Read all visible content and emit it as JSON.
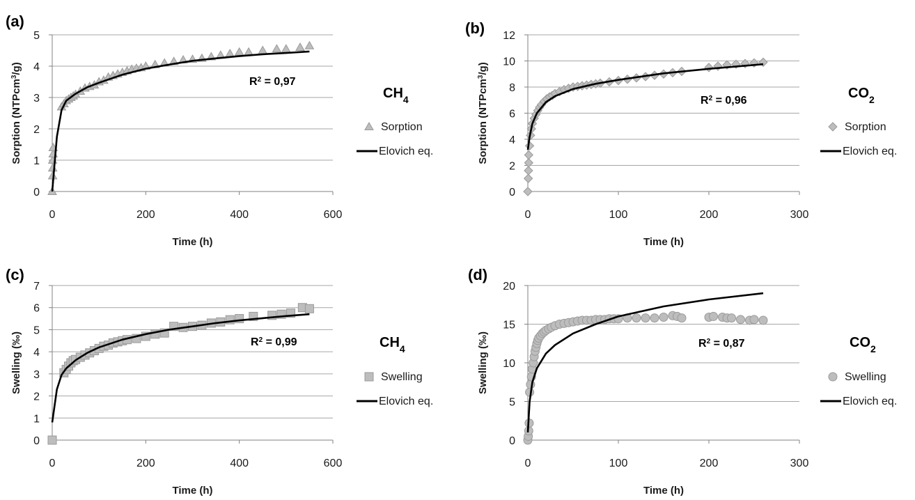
{
  "colors": {
    "marker_fill": "#bdbdbd",
    "marker_stroke": "#9a9a9a",
    "fit_line": "#000000",
    "gridline": "#a6a6a6",
    "axis": "#808080"
  },
  "chart_data": [
    {
      "panel_label": "(a)",
      "gas": "CH",
      "gas_sub": "4",
      "type": "scatter",
      "marker": "triangle",
      "ylabel_main": "Sorption (NTPcm",
      "ylabel_sup": "3",
      "ylabel_end": "/g)",
      "xlabel": "Time (h)",
      "xlim": [
        0,
        600
      ],
      "xticks": [
        0,
        200,
        400,
        600
      ],
      "ylim": [
        0,
        5
      ],
      "yticks": [
        0,
        1,
        2,
        3,
        4,
        5
      ],
      "grid": "horizontal",
      "legend_placement": "right",
      "r2_prefix": "R",
      "r2_sup": "2",
      "r2_value": " = 0,97",
      "series": [
        {
          "name": "Sorption",
          "kind": "markers",
          "points": [
            [
              0,
              0
            ],
            [
              1,
              0.5
            ],
            [
              1,
              0.75
            ],
            [
              1,
              1.0
            ],
            [
              2,
              1.2
            ],
            [
              2,
              1.4
            ],
            [
              20,
              2.7
            ],
            [
              25,
              2.8
            ],
            [
              30,
              2.9
            ],
            [
              35,
              2.95
            ],
            [
              40,
              3.0
            ],
            [
              45,
              3.05
            ],
            [
              50,
              3.1
            ],
            [
              60,
              3.2
            ],
            [
              70,
              3.3
            ],
            [
              80,
              3.35
            ],
            [
              90,
              3.4
            ],
            [
              100,
              3.5
            ],
            [
              110,
              3.55
            ],
            [
              120,
              3.65
            ],
            [
              130,
              3.7
            ],
            [
              140,
              3.75
            ],
            [
              150,
              3.8
            ],
            [
              160,
              3.85
            ],
            [
              170,
              3.9
            ],
            [
              180,
              3.93
            ],
            [
              190,
              3.95
            ],
            [
              200,
              4.0
            ],
            [
              220,
              4.05
            ],
            [
              240,
              4.1
            ],
            [
              260,
              4.15
            ],
            [
              280,
              4.2
            ],
            [
              300,
              4.22
            ],
            [
              320,
              4.25
            ],
            [
              340,
              4.3
            ],
            [
              360,
              4.35
            ],
            [
              380,
              4.4
            ],
            [
              400,
              4.45
            ],
            [
              420,
              4.45
            ],
            [
              450,
              4.5
            ],
            [
              480,
              4.55
            ],
            [
              500,
              4.55
            ],
            [
              530,
              4.6
            ],
            [
              550,
              4.65
            ]
          ]
        },
        {
          "name": "Elovich eq.",
          "kind": "line",
          "points": [
            [
              0,
              0
            ],
            [
              10,
              1.75
            ],
            [
              20,
              2.6
            ],
            [
              30,
              2.9
            ],
            [
              50,
              3.12
            ],
            [
              75,
              3.33
            ],
            [
              100,
              3.47
            ],
            [
              150,
              3.73
            ],
            [
              200,
              3.92
            ],
            [
              250,
              4.05
            ],
            [
              300,
              4.17
            ],
            [
              350,
              4.25
            ],
            [
              400,
              4.32
            ],
            [
              450,
              4.38
            ],
            [
              500,
              4.42
            ],
            [
              550,
              4.47
            ]
          ]
        }
      ]
    },
    {
      "panel_label": "(b)",
      "gas": "CO",
      "gas_sub": "2",
      "type": "scatter",
      "marker": "diamond",
      "ylabel_main": "Sorption (NTPcm",
      "ylabel_sup": "3",
      "ylabel_end": "/g)",
      "xlabel": "Time (h)",
      "xlim": [
        0,
        300
      ],
      "xticks": [
        0,
        100,
        200,
        300
      ],
      "ylim": [
        0,
        12
      ],
      "yticks": [
        0,
        2,
        4,
        6,
        8,
        10,
        12
      ],
      "grid": "horizontal",
      "legend_placement": "right",
      "r2_prefix": "R",
      "r2_sup": "2",
      "r2_value": " = 0,96",
      "series": [
        {
          "name": "Sorption",
          "kind": "markers",
          "points": [
            [
              0,
              0
            ],
            [
              0.5,
              1.0
            ],
            [
              0.7,
              1.6
            ],
            [
              1,
              2.2
            ],
            [
              1,
              2.8
            ],
            [
              2,
              3.5
            ],
            [
              3,
              4.3
            ],
            [
              4,
              4.8
            ],
            [
              5,
              5.2
            ],
            [
              7,
              5.6
            ],
            [
              9,
              5.9
            ],
            [
              11,
              6.2
            ],
            [
              13,
              6.45
            ],
            [
              15,
              6.65
            ],
            [
              18,
              6.9
            ],
            [
              21,
              7.1
            ],
            [
              24,
              7.25
            ],
            [
              27,
              7.35
            ],
            [
              30,
              7.5
            ],
            [
              35,
              7.65
            ],
            [
              40,
              7.8
            ],
            [
              45,
              7.9
            ],
            [
              50,
              8.0
            ],
            [
              55,
              8.05
            ],
            [
              60,
              8.1
            ],
            [
              65,
              8.15
            ],
            [
              70,
              8.2
            ],
            [
              75,
              8.25
            ],
            [
              80,
              8.3
            ],
            [
              90,
              8.4
            ],
            [
              100,
              8.5
            ],
            [
              110,
              8.6
            ],
            [
              120,
              8.7
            ],
            [
              130,
              8.8
            ],
            [
              140,
              8.9
            ],
            [
              150,
              9.0
            ],
            [
              160,
              9.1
            ],
            [
              170,
              9.2
            ],
            [
              200,
              9.5
            ],
            [
              210,
              9.6
            ],
            [
              220,
              9.7
            ],
            [
              230,
              9.75
            ],
            [
              240,
              9.8
            ],
            [
              250,
              9.85
            ],
            [
              260,
              9.9
            ]
          ]
        },
        {
          "name": "Elovich eq.",
          "kind": "line",
          "points": [
            [
              0,
              3.2
            ],
            [
              2,
              4.2
            ],
            [
              5,
              5.2
            ],
            [
              10,
              6.0
            ],
            [
              20,
              6.85
            ],
            [
              30,
              7.3
            ],
            [
              50,
              7.85
            ],
            [
              75,
              8.25
            ],
            [
              100,
              8.55
            ],
            [
              150,
              9.05
            ],
            [
              200,
              9.4
            ],
            [
              260,
              9.75
            ]
          ]
        }
      ]
    },
    {
      "panel_label": "(c)",
      "gas": "CH",
      "gas_sub": "4",
      "type": "scatter",
      "marker": "square",
      "ylabel_main": "Swelling (‰)",
      "ylabel_sup": "",
      "ylabel_end": "",
      "xlabel": "Time (h)",
      "xlim": [
        0,
        600
      ],
      "xticks": [
        0,
        200,
        400,
        600
      ],
      "ylim": [
        0,
        7
      ],
      "yticks": [
        0,
        1,
        2,
        3,
        4,
        5,
        6,
        7
      ],
      "grid": "horizontal",
      "legend_placement": "right",
      "r2_prefix": "R",
      "r2_sup": "2",
      "r2_value": " = 0,99",
      "series": [
        {
          "name": "Swelling",
          "kind": "markers",
          "points": [
            [
              0,
              0
            ],
            [
              25,
              3.05
            ],
            [
              30,
              3.2
            ],
            [
              35,
              3.35
            ],
            [
              40,
              3.5
            ],
            [
              45,
              3.6
            ],
            [
              50,
              3.65
            ],
            [
              60,
              3.75
            ],
            [
              70,
              3.85
            ],
            [
              80,
              3.95
            ],
            [
              90,
              4.05
            ],
            [
              100,
              4.15
            ],
            [
              110,
              4.25
            ],
            [
              120,
              4.3
            ],
            [
              130,
              4.4
            ],
            [
              140,
              4.45
            ],
            [
              150,
              4.5
            ],
            [
              160,
              4.55
            ],
            [
              180,
              4.6
            ],
            [
              200,
              4.7
            ],
            [
              220,
              4.8
            ],
            [
              240,
              4.85
            ],
            [
              260,
              5.15
            ],
            [
              280,
              5.1
            ],
            [
              300,
              5.15
            ],
            [
              320,
              5.2
            ],
            [
              340,
              5.3
            ],
            [
              360,
              5.35
            ],
            [
              380,
              5.45
            ],
            [
              400,
              5.5
            ],
            [
              430,
              5.6
            ],
            [
              470,
              5.65
            ],
            [
              490,
              5.7
            ],
            [
              510,
              5.75
            ],
            [
              535,
              6.0
            ],
            [
              550,
              5.95
            ]
          ]
        },
        {
          "name": "Elovich eq.",
          "kind": "line",
          "points": [
            [
              0,
              0.8
            ],
            [
              10,
              2.3
            ],
            [
              20,
              2.95
            ],
            [
              30,
              3.25
            ],
            [
              50,
              3.62
            ],
            [
              75,
              3.95
            ],
            [
              100,
              4.2
            ],
            [
              150,
              4.55
            ],
            [
              200,
              4.8
            ],
            [
              250,
              5.0
            ],
            [
              300,
              5.15
            ],
            [
              350,
              5.3
            ],
            [
              400,
              5.42
            ],
            [
              450,
              5.52
            ],
            [
              500,
              5.62
            ],
            [
              550,
              5.7
            ]
          ]
        }
      ]
    },
    {
      "panel_label": "(d)",
      "gas": "CO",
      "gas_sub": "2",
      "type": "scatter",
      "marker": "circle",
      "ylabel_main": "Swelling (‰)",
      "ylabel_sup": "",
      "ylabel_end": "",
      "xlabel": "Time (h)",
      "xlim": [
        0,
        300
      ],
      "xticks": [
        0,
        100,
        200,
        300
      ],
      "ylim": [
        0,
        20
      ],
      "yticks": [
        0,
        5,
        10,
        15,
        20
      ],
      "grid": "horizontal",
      "legend_placement": "right",
      "r2_prefix": "R",
      "r2_sup": "2",
      "r2_value": " = 0,87",
      "series": [
        {
          "name": "Swelling",
          "kind": "markers",
          "points": [
            [
              0,
              0
            ],
            [
              0.5,
              0.5
            ],
            [
              1,
              1.2
            ],
            [
              1.5,
              2.2
            ],
            [
              2,
              6.2
            ],
            [
              3,
              7.2
            ],
            [
              4,
              8.2
            ],
            [
              5,
              9.2
            ],
            [
              6,
              10.0
            ],
            [
              7,
              10.8
            ],
            [
              8,
              11.5
            ],
            [
              9,
              12.0
            ],
            [
              10,
              12.5
            ],
            [
              11,
              12.9
            ],
            [
              12,
              13.2
            ],
            [
              14,
              13.5
            ],
            [
              16,
              13.8
            ],
            [
              18,
              14.0
            ],
            [
              20,
              14.2
            ],
            [
              23,
              14.4
            ],
            [
              26,
              14.6
            ],
            [
              30,
              14.8
            ],
            [
              35,
              15.0
            ],
            [
              40,
              15.1
            ],
            [
              45,
              15.2
            ],
            [
              50,
              15.3
            ],
            [
              55,
              15.4
            ],
            [
              60,
              15.5
            ],
            [
              65,
              15.5
            ],
            [
              70,
              15.5
            ],
            [
              75,
              15.6
            ],
            [
              80,
              15.6
            ],
            [
              85,
              15.6
            ],
            [
              90,
              15.7
            ],
            [
              95,
              15.7
            ],
            [
              100,
              15.7
            ],
            [
              110,
              15.8
            ],
            [
              120,
              15.8
            ],
            [
              130,
              15.8
            ],
            [
              140,
              15.8
            ],
            [
              150,
              15.9
            ],
            [
              160,
              16.1
            ],
            [
              165,
              16.0
            ],
            [
              170,
              15.8
            ],
            [
              200,
              15.9
            ],
            [
              205,
              16.0
            ],
            [
              215,
              15.9
            ],
            [
              220,
              15.8
            ],
            [
              225,
              15.8
            ],
            [
              235,
              15.6
            ],
            [
              245,
              15.5
            ],
            [
              250,
              15.6
            ],
            [
              260,
              15.5
            ]
          ]
        },
        {
          "name": "Elovich eq.",
          "kind": "line",
          "points": [
            [
              0,
              1.0
            ],
            [
              2,
              5.0
            ],
            [
              5,
              7.5
            ],
            [
              10,
              9.3
            ],
            [
              20,
              11.2
            ],
            [
              30,
              12.3
            ],
            [
              50,
              13.8
            ],
            [
              75,
              15.0
            ],
            [
              100,
              16.0
            ],
            [
              150,
              17.3
            ],
            [
              200,
              18.2
            ],
            [
              260,
              19.0
            ]
          ]
        }
      ]
    }
  ]
}
